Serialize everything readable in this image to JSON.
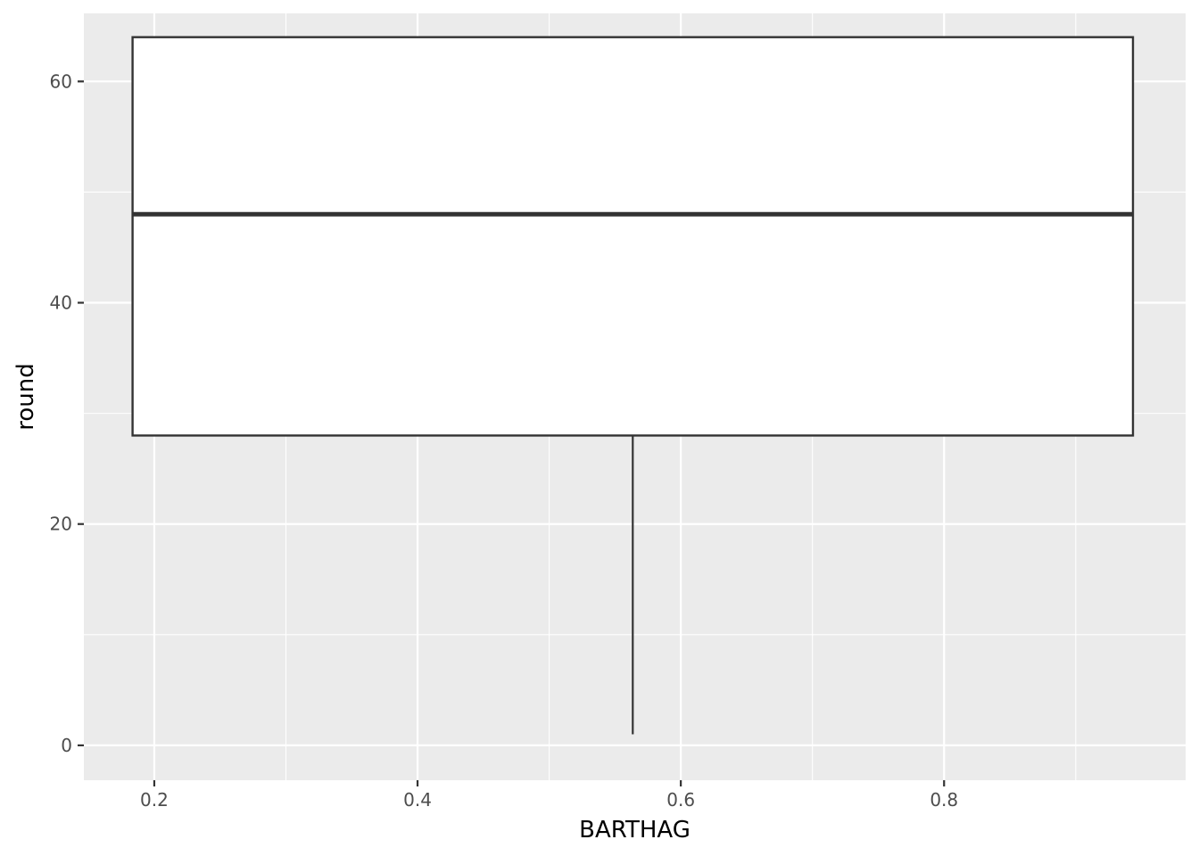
{
  "chart_data": {
    "type": "boxplot",
    "xlabel": "BARTHAG",
    "ylabel": "round",
    "xlim": [
      0.1465,
      0.9835
    ],
    "ylim": [
      -3.15,
      66.15
    ],
    "x_ticks": [
      0.2,
      0.4,
      0.6,
      0.8
    ],
    "x_tick_labels": [
      "0.2",
      "0.4",
      "0.6",
      "0.8"
    ],
    "x_minor_ticks": [
      0.3,
      0.5,
      0.7,
      0.9
    ],
    "y_ticks": [
      0,
      20,
      40,
      60
    ],
    "y_tick_labels": [
      "0",
      "20",
      "40",
      "60"
    ],
    "y_minor_ticks": [
      10,
      30,
      50
    ],
    "grid": true,
    "box": {
      "x_min": 0.1835,
      "x_max": 0.9435,
      "x_center": 0.5635,
      "lower_whisker": 1,
      "q1": 28,
      "median": 48,
      "q3": 64,
      "upper_whisker": 64
    },
    "colors": {
      "panel_background": "#ebebeb",
      "grid": "#ffffff",
      "box_fill": "#ffffff",
      "box_stroke": "#333333"
    }
  }
}
